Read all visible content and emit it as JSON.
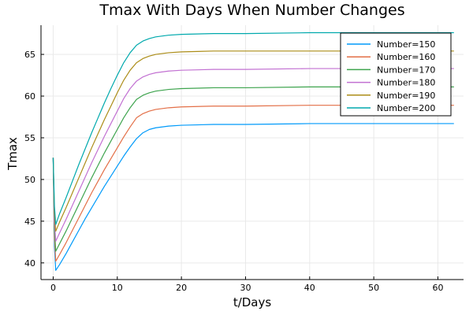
{
  "chart_data": {
    "type": "line",
    "title": "Tmax With Days When Number Changes",
    "xlabel": "t/Days",
    "ylabel": "Tmax",
    "xlim": [
      -1.9,
      64
    ],
    "ylim": [
      38,
      68.5
    ],
    "xticks": [
      0,
      10,
      20,
      30,
      40,
      50,
      60
    ],
    "yticks": [
      40,
      45,
      50,
      55,
      60,
      65
    ],
    "grid": true,
    "legend_position": "top-right",
    "x": [
      0,
      0.2,
      0.4,
      1,
      2,
      3,
      4,
      5,
      6,
      7,
      8,
      9,
      10,
      11,
      12,
      13,
      14,
      15,
      16,
      18,
      20,
      25,
      30,
      40,
      50,
      62.5
    ],
    "series": [
      {
        "name": "Number=150",
        "color": "#009AFA",
        "values": [
          52.6,
          42.0,
          39.1,
          39.8,
          41.1,
          42.5,
          43.9,
          45.3,
          46.6,
          47.9,
          49.2,
          50.4,
          51.6,
          52.8,
          53.9,
          54.9,
          55.6,
          56.0,
          56.2,
          56.4,
          56.5,
          56.6,
          56.6,
          56.7,
          56.7,
          56.7
        ]
      },
      {
        "name": "Number=160",
        "color": "#E36F47",
        "values": [
          52.6,
          43.0,
          40.2,
          41.0,
          42.4,
          43.9,
          45.4,
          46.9,
          48.4,
          49.8,
          51.2,
          52.5,
          53.8,
          55.1,
          56.3,
          57.4,
          57.9,
          58.2,
          58.4,
          58.6,
          58.7,
          58.8,
          58.8,
          58.9,
          58.9,
          58.9
        ]
      },
      {
        "name": "Number=170",
        "color": "#3EA44E",
        "values": [
          52.6,
          44.0,
          41.4,
          42.3,
          43.8,
          45.4,
          47.0,
          48.6,
          50.2,
          51.7,
          53.2,
          54.6,
          56.0,
          57.4,
          58.6,
          59.6,
          60.1,
          60.4,
          60.6,
          60.8,
          60.9,
          61.0,
          61.0,
          61.1,
          61.1,
          61.1
        ]
      },
      {
        "name": "Number=180",
        "color": "#C271D2",
        "values": [
          52.6,
          45.0,
          42.6,
          43.6,
          45.2,
          46.9,
          48.6,
          50.3,
          52.0,
          53.6,
          55.2,
          56.7,
          58.2,
          59.7,
          60.9,
          61.8,
          62.3,
          62.6,
          62.8,
          63.0,
          63.1,
          63.2,
          63.2,
          63.3,
          63.3,
          63.3
        ]
      },
      {
        "name": "Number=190",
        "color": "#AC8D18",
        "values": [
          52.6,
          46.0,
          43.8,
          44.9,
          46.6,
          48.4,
          50.2,
          52.0,
          53.8,
          55.5,
          57.2,
          58.8,
          60.4,
          61.9,
          63.1,
          64.0,
          64.5,
          64.8,
          65.0,
          65.2,
          65.3,
          65.4,
          65.4,
          65.4,
          65.4,
          65.4
        ]
      },
      {
        "name": "Number=200",
        "color": "#00A9AD",
        "values": [
          52.6,
          46.8,
          44.6,
          45.9,
          47.8,
          49.8,
          51.8,
          53.7,
          55.6,
          57.4,
          59.2,
          60.9,
          62.5,
          64.0,
          65.2,
          66.1,
          66.6,
          66.9,
          67.1,
          67.3,
          67.4,
          67.5,
          67.5,
          67.6,
          67.6,
          67.6
        ]
      }
    ]
  }
}
